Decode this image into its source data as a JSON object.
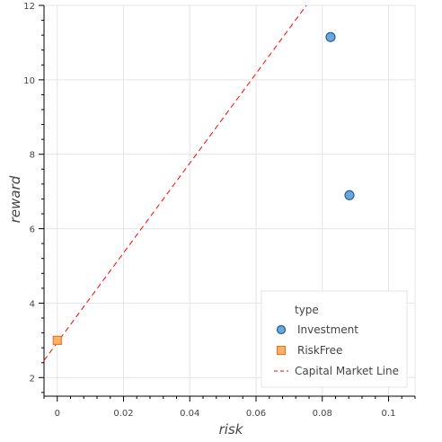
{
  "chart_data": {
    "type": "scatter",
    "xlabel": "risk",
    "ylabel": "reward",
    "xlim": [
      -0.004,
      0.108
    ],
    "ylim": [
      1.5,
      12.0
    ],
    "x_ticks": [
      0,
      0.02,
      0.04,
      0.06,
      0.08,
      0.1
    ],
    "x_tick_labels": [
      "0",
      "0.02",
      "0.04",
      "0.06",
      "0.08",
      "0.1"
    ],
    "y_ticks": [
      2,
      4,
      6,
      8,
      10,
      12
    ],
    "y_tick_labels": [
      "2",
      "4",
      "6",
      "8",
      "10",
      "12"
    ],
    "grid": true,
    "legend": {
      "title": "type",
      "position": "bottom-right",
      "entries": [
        "Investment",
        "RiskFree",
        "Capital Market Line"
      ]
    },
    "series": [
      {
        "name": "Investment",
        "kind": "scatter",
        "marker": "circle",
        "color": "#6fa6d8",
        "edge_color": "#1f5f9f",
        "points": [
          {
            "x": 0.0825,
            "y": 11.15
          },
          {
            "x": 0.0882,
            "y": 6.9
          }
        ]
      },
      {
        "name": "RiskFree",
        "kind": "scatter",
        "marker": "square",
        "color": "#ffb366",
        "edge_color": "#e8772e",
        "points": [
          {
            "x": 0.0,
            "y": 3.0
          }
        ]
      },
      {
        "name": "Capital Market Line",
        "kind": "line",
        "dash": "dashed",
        "color": "#ff0000",
        "points": [
          {
            "x": -0.004,
            "y": 2.46
          },
          {
            "x": 0.0752,
            "y": 12.0
          }
        ]
      }
    ]
  }
}
